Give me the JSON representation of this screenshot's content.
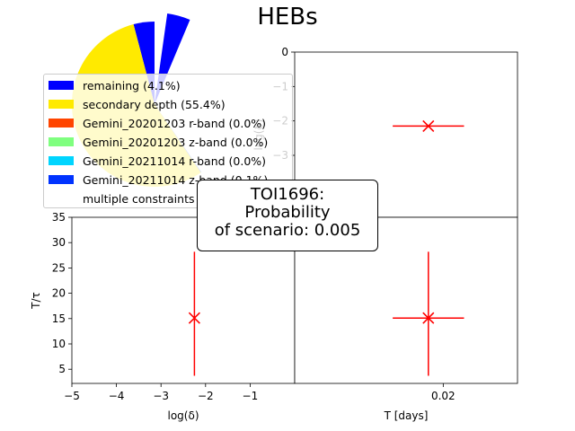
{
  "figure_title": "HEBs",
  "scenario_box": {
    "line1": "TOI1696:",
    "line2": "Probability",
    "line3": "of scenario: 0.005"
  },
  "legend": [
    {
      "label": "remaining (4.1%)",
      "color": "#0000ff"
    },
    {
      "label": "secondary depth (55.4%)",
      "color": "#ffea00"
    },
    {
      "label": "Gemini_20201203 r-band (0.0%)",
      "color": "#ff4500"
    },
    {
      "label": "Gemini_20201203 z-band (0.0%)",
      "color": "#7fff7f"
    },
    {
      "label": "Gemini_20211014 r-band (0.0%)",
      "color": "#00d5ff"
    },
    {
      "label": "Gemini_20211014 z-band (0.1%)",
      "color": "#0033ff"
    },
    {
      "label": "multiple constraints",
      "color": "#ffffff"
    }
  ],
  "chart_data": [
    {
      "panel": "pie",
      "type": "pie",
      "slices": [
        {
          "label": "remaining (4.1%)",
          "value": 4.1,
          "color": "#0000ff"
        },
        {
          "label": "secondary depth (55.4%)",
          "value": 55.4,
          "color": "#ffea00"
        },
        {
          "label": "Gemini_20201203 r-band (0.0%)",
          "value": 0.0,
          "color": "#ff4500"
        },
        {
          "label": "Gemini_20201203 z-band (0.0%)",
          "value": 0.0,
          "color": "#7fff7f"
        },
        {
          "label": "Gemini_20211014 r-band (0.0%)",
          "value": 0.0,
          "color": "#00d5ff"
        },
        {
          "label": "Gemini_20211014 z-band (0.1%)",
          "value": 0.1,
          "color": "#0033ff"
        }
      ]
    },
    {
      "panel": "top-right",
      "type": "scatter",
      "xlabel": "",
      "ylabel": "log(δ)",
      "xlim": [
        0.0,
        0.03
      ],
      "ylim": [
        -4.8,
        0
      ],
      "yticks": [
        0,
        -1,
        -2,
        -3
      ],
      "xticks": [],
      "points": [
        {
          "x": 0.018,
          "y": -2.15,
          "xerr": [
            0.0048,
            0.0048
          ],
          "yerr": [
            0,
            0
          ]
        }
      ]
    },
    {
      "panel": "bottom-left",
      "type": "scatter",
      "xlabel": "log(δ)",
      "ylabel": "T/τ",
      "xlim": [
        -5,
        0
      ],
      "ylim": [
        2.2,
        35
      ],
      "xticks": [
        -5,
        -4,
        -3,
        -2,
        -1
      ],
      "yticks": [
        5,
        10,
        15,
        20,
        25,
        30,
        35
      ],
      "points": [
        {
          "x": -2.25,
          "y": 15.1,
          "xerr": [
            0,
            0
          ],
          "yerr": [
            11.4,
            13.1
          ]
        }
      ]
    },
    {
      "panel": "bottom-right",
      "type": "scatter",
      "xlabel": "T [days]",
      "ylabel": "",
      "xlim": [
        0.0,
        0.03
      ],
      "ylim": [
        2.2,
        35
      ],
      "xticks": [
        0.02
      ],
      "yticks": [],
      "points": [
        {
          "x": 0.018,
          "y": 15.1,
          "xerr": [
            0.0048,
            0.0048
          ],
          "yerr": [
            11.4,
            13.1
          ]
        }
      ]
    }
  ]
}
